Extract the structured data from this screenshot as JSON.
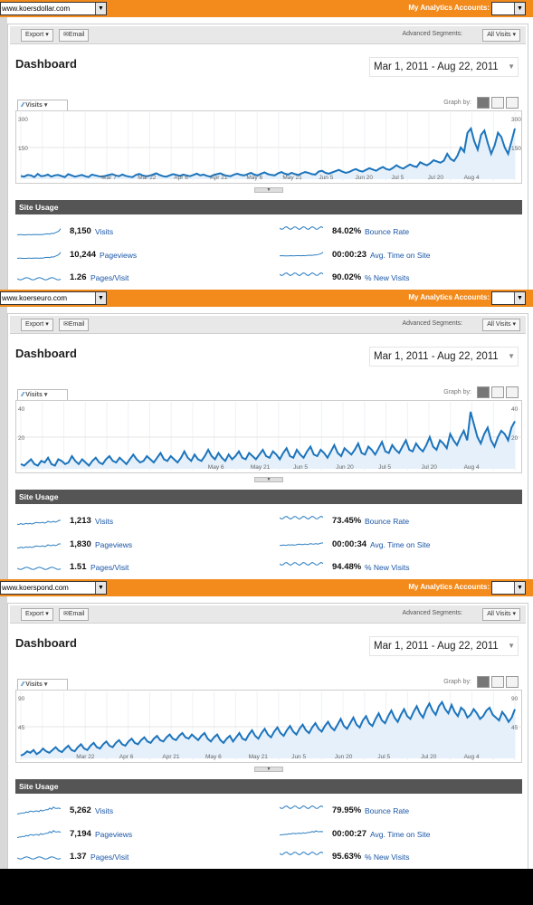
{
  "panels": [
    {
      "site": "www.koersdollar.com",
      "accounts_label": "My Analytics Accounts:",
      "toolbar": {
        "export": "Export",
        "email": "Email",
        "segments_label": "Advanced Segments:",
        "segments_value": "All Visits"
      },
      "title": "Dashboard",
      "date_range": "Mar 1, 2011 - Aug 22, 2011",
      "graph_tab": "Visits",
      "graph_by_label": "Graph by:",
      "site_usage_label": "Site Usage",
      "metrics": [
        {
          "value": "8,150",
          "label": "Visits"
        },
        {
          "value": "84.02%",
          "label": "Bounce Rate"
        },
        {
          "value": "10,244",
          "label": "Pageviews"
        },
        {
          "value": "00:00:23",
          "label": "Avg. Time on Site"
        },
        {
          "value": "1.26",
          "label": "Pages/Visit"
        },
        {
          "value": "90.02%",
          "label": "% New Visits"
        }
      ],
      "chart_data": {
        "type": "area",
        "y_ticks": [
          "300",
          "150"
        ],
        "ylim": [
          0,
          300
        ],
        "x_labels": [
          "Mar 7",
          "Mar 22",
          "Apr 6",
          "Apr 21",
          "May 6",
          "May 21",
          "Jun 5",
          "Jun 20",
          "Jul 5",
          "Jul 20",
          "Aug 4"
        ],
        "series": [
          {
            "values": [
              15,
              12,
              20,
              18,
              10,
              25,
              14,
              16,
              22,
              12,
              18,
              20,
              15,
              10,
              24,
              18,
              12,
              16,
              20,
              14,
              10,
              22,
              18,
              14,
              12,
              16,
              20,
              24,
              18,
              14,
              22,
              16,
              12,
              10,
              20,
              25,
              18,
              14,
              16,
              22,
              28,
              20,
              14,
              12,
              18,
              24,
              20,
              16,
              22,
              18,
              14,
              20,
              26,
              18,
              22,
              16,
              12,
              20,
              24,
              28,
              20,
              16,
              14,
              22,
              26,
              20,
              18,
              24,
              30,
              22,
              18,
              26,
              32,
              24,
              20,
              18,
              28,
              34,
              26,
              22,
              30,
              24,
              20,
              28,
              34,
              30,
              24,
              22,
              36,
              40,
              30,
              26,
              32,
              38,
              44,
              36,
              30,
              34,
              42,
              48,
              40,
              36,
              44,
              52,
              46,
              40,
              50,
              58,
              48,
              44,
              54,
              66,
              56,
              50,
              60,
              70,
              62,
              58,
              80,
              72,
              66,
              76,
              90,
              84,
              78,
              88,
              120,
              96,
              86,
              110,
              150,
              130,
              220,
              240,
              180,
              140,
              210,
              230,
              170,
              120,
              160,
              220,
              200,
              150,
              120,
              180,
              240
            ]
          }
        ]
      }
    },
    {
      "site": "www.koerseuro.com",
      "accounts_label": "My Analytics Accounts:",
      "toolbar": {
        "export": "Export",
        "email": "Email",
        "segments_label": "Advanced Segments:",
        "segments_value": "All Visits"
      },
      "title": "Dashboard",
      "date_range": "Mar 1, 2011 - Aug 22, 2011",
      "graph_tab": "Visits",
      "graph_by_label": "Graph by:",
      "site_usage_label": "Site Usage",
      "metrics": [
        {
          "value": "1,213",
          "label": "Visits"
        },
        {
          "value": "73.45%",
          "label": "Bounce Rate"
        },
        {
          "value": "1,830",
          "label": "Pageviews"
        },
        {
          "value": "00:00:34",
          "label": "Avg. Time on Site"
        },
        {
          "value": "1.51",
          "label": "Pages/Visit"
        },
        {
          "value": "94.48%",
          "label": "% New Visits"
        }
      ],
      "chart_data": {
        "type": "area",
        "y_ticks": [
          "40",
          "20"
        ],
        "ylim": [
          0,
          40
        ],
        "x_labels": [
          "May 6",
          "May 21",
          "Jun 5",
          "Jun 20",
          "Jul 5",
          "Jul 20",
          "Aug 4"
        ],
        "series": [
          {
            "values": [
              3,
              2,
              4,
              6,
              3,
              2,
              5,
              4,
              7,
              3,
              2,
              6,
              5,
              3,
              4,
              8,
              5,
              3,
              6,
              4,
              2,
              5,
              7,
              4,
              3,
              6,
              8,
              5,
              4,
              7,
              5,
              3,
              6,
              9,
              6,
              4,
              5,
              8,
              6,
              4,
              7,
              10,
              6,
              5,
              8,
              6,
              4,
              7,
              11,
              7,
              5,
              9,
              6,
              5,
              8,
              12,
              8,
              6,
              10,
              7,
              5,
              9,
              6,
              8,
              11,
              7,
              6,
              10,
              8,
              6,
              9,
              12,
              8,
              7,
              11,
              9,
              6,
              10,
              13,
              8,
              7,
              12,
              9,
              7,
              11,
              14,
              9,
              8,
              12,
              10,
              7,
              11,
              15,
              10,
              8,
              13,
              11,
              9,
              12,
              16,
              10,
              9,
              14,
              12,
              9,
              13,
              17,
              11,
              10,
              15,
              12,
              10,
              14,
              18,
              12,
              11,
              16,
              13,
              11,
              15,
              20,
              14,
              12,
              18,
              16,
              13,
              22,
              18,
              15,
              20,
              24,
              18,
              36,
              28,
              20,
              16,
              22,
              26,
              18,
              14,
              20,
              24,
              22,
              18,
              26,
              30
            ]
          }
        ]
      }
    },
    {
      "site": "www.koerspond.com",
      "accounts_label": "My Analytics Accounts:",
      "toolbar": {
        "export": "Export",
        "email": "Email",
        "segments_label": "Advanced Segments:",
        "segments_value": "All Visits"
      },
      "title": "Dashboard",
      "date_range": "Mar 1, 2011 - Aug 22, 2011",
      "graph_tab": "Visits",
      "graph_by_label": "Graph by:",
      "site_usage_label": "Site Usage",
      "metrics": [
        {
          "value": "5,262",
          "label": "Visits"
        },
        {
          "value": "79.95%",
          "label": "Bounce Rate"
        },
        {
          "value": "7,194",
          "label": "Pageviews"
        },
        {
          "value": "00:00:27",
          "label": "Avg. Time on Site"
        },
        {
          "value": "1.37",
          "label": "Pages/Visit"
        },
        {
          "value": "95.63%",
          "label": "% New Visits"
        }
      ],
      "chart_data": {
        "type": "area",
        "y_ticks": [
          "90",
          "45"
        ],
        "ylim": [
          0,
          90
        ],
        "x_labels": [
          "Mar 22",
          "Apr 6",
          "Apr 21",
          "May 6",
          "May 21",
          "Jun 5",
          "Jun 20",
          "Jul 5",
          "Jul 20",
          "Aug 4"
        ],
        "series": [
          {
            "values": [
              4,
              6,
              10,
              8,
              12,
              6,
              9,
              14,
              10,
              8,
              12,
              16,
              11,
              9,
              14,
              18,
              12,
              10,
              16,
              20,
              14,
              12,
              18,
              22,
              16,
              14,
              20,
              24,
              18,
              16,
              22,
              26,
              20,
              18,
              24,
              28,
              22,
              20,
              26,
              30,
              24,
              22,
              28,
              32,
              26,
              24,
              30,
              34,
              28,
              26,
              32,
              36,
              30,
              28,
              34,
              30,
              26,
              32,
              36,
              28,
              24,
              30,
              34,
              26,
              22,
              28,
              32,
              24,
              30,
              36,
              28,
              26,
              34,
              40,
              32,
              28,
              36,
              42,
              34,
              30,
              38,
              44,
              36,
              32,
              40,
              46,
              38,
              34,
              42,
              48,
              40,
              36,
              44,
              50,
              42,
              38,
              46,
              52,
              44,
              40,
              48,
              56,
              46,
              42,
              50,
              58,
              48,
              44,
              54,
              60,
              50,
              46,
              56,
              64,
              54,
              50,
              60,
              68,
              58,
              52,
              62,
              70,
              60,
              56,
              66,
              74,
              64,
              58,
              70,
              78,
              68,
              62,
              74,
              80,
              70,
              64,
              76,
              66,
              60,
              72,
              68,
              58,
              62,
              70,
              64,
              56,
              60,
              68,
              72,
              62,
              58,
              54,
              66,
              60,
              52,
              58,
              70
            ]
          }
        ]
      }
    }
  ]
}
